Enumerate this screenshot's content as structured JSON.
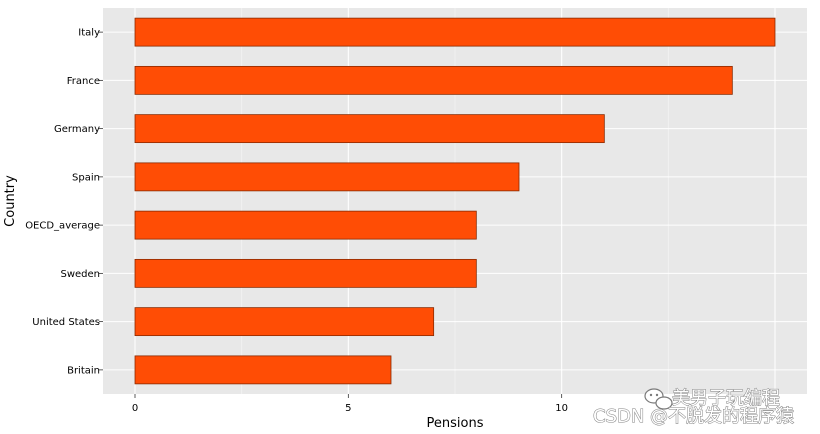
{
  "chart_data": {
    "type": "bar",
    "orientation": "horizontal",
    "categories": [
      "Italy",
      "France",
      "Germany",
      "Spain",
      "OECD_average",
      "Sweden",
      "United States",
      "Britain"
    ],
    "values": [
      15,
      14,
      11,
      9,
      8,
      8,
      7,
      6
    ],
    "xlabel": "Pensions",
    "ylabel": "Country",
    "xlim": [
      -0.75,
      15.75
    ],
    "xticks": [
      0,
      5,
      10
    ],
    "grid": true,
    "legend": "none"
  },
  "colors": {
    "bar_fill": "#ff4d05",
    "bar_edge": "#8a2a00",
    "plot_background": "#e8e8e8",
    "grid_major": "#ffffff",
    "grid_minor": "#f3f3f3"
  },
  "watermark": {
    "line1": "美男子玩编程",
    "line2": "CSDN @不脱发的程序猿",
    "icon": "wechat-icon"
  }
}
